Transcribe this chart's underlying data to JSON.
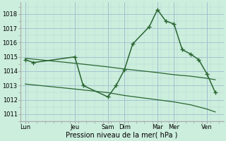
{
  "xlabel": "Pression niveau de la mer( hPa )",
  "background_color": "#cceedd",
  "grid_color": "#aabbcc",
  "line_color": "#2a6632",
  "x_labels": [
    "Lun",
    "Jeu",
    "Sam",
    "Dim",
    "Mar",
    "Mer",
    "Ven"
  ],
  "x_ticks": [
    0,
    3,
    5,
    6,
    8,
    9,
    11
  ],
  "xlim": [
    -0.3,
    12.0
  ],
  "ylim": [
    1010.5,
    1018.8
  ],
  "yticks": [
    1011,
    1012,
    1013,
    1014,
    1015,
    1016,
    1017,
    1018
  ],
  "line_main": {
    "x": [
      0,
      0.5,
      3,
      3.5,
      5,
      5.5,
      6,
      6.5,
      7.5,
      8,
      8.5,
      9,
      9.5,
      10,
      10.5,
      11,
      11.5
    ],
    "y": [
      1014.8,
      1014.6,
      1015.0,
      1013.0,
      1012.2,
      1013.0,
      1014.1,
      1015.9,
      1017.1,
      1018.3,
      1017.5,
      1017.3,
      1015.5,
      1015.2,
      1014.8,
      1013.8,
      1012.5
    ]
  },
  "line_upper": {
    "x": [
      0,
      3,
      5,
      6,
      8,
      9,
      10,
      11,
      11.5
    ],
    "y": [
      1014.9,
      1014.55,
      1014.3,
      1014.15,
      1013.9,
      1013.75,
      1013.65,
      1013.5,
      1013.4
    ]
  },
  "line_lower": {
    "x": [
      0,
      3,
      5,
      6,
      8,
      9,
      10,
      11,
      11.5
    ],
    "y": [
      1013.1,
      1012.75,
      1012.5,
      1012.3,
      1012.0,
      1011.85,
      1011.65,
      1011.35,
      1011.15
    ]
  }
}
